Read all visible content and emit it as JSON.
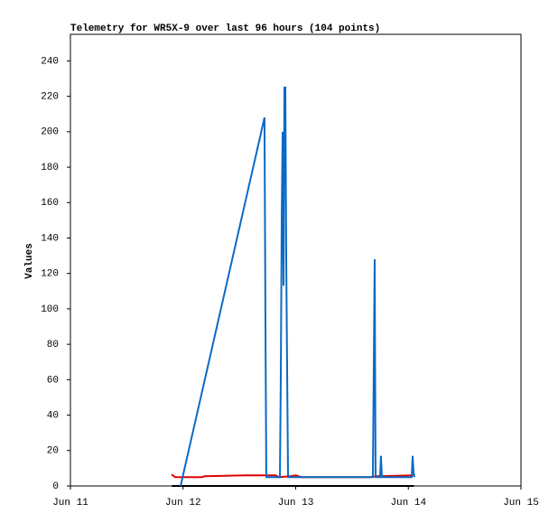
{
  "chart_data": {
    "type": "line",
    "title": "Telemetry for WR5X-9 over last 96 hours (104 points)",
    "y_label": "Values",
    "xlim": [
      11,
      15
    ],
    "xticks": [
      {
        "value": 11,
        "label": "Jun 11"
      },
      {
        "value": 12,
        "label": "Jun 12"
      },
      {
        "value": 13,
        "label": "Jun 13"
      },
      {
        "value": 14,
        "label": "Jun 14"
      },
      {
        "value": 15,
        "label": "Jun 15"
      }
    ],
    "ylim": [
      0,
      255
    ],
    "yticks": [
      0,
      20,
      40,
      60,
      80,
      100,
      120,
      140,
      160,
      180,
      200,
      220,
      240
    ],
    "grid": false,
    "series": [
      {
        "color": "#000000",
        "x": [
          11.9,
          14.05
        ],
        "values": [
          0,
          0
        ]
      },
      {
        "color": "#e00000",
        "x": [
          11.898,
          11.93,
          12.17,
          12.19,
          12.55,
          12.82,
          12.85,
          12.95,
          13.0,
          13.05,
          13.65,
          13.72,
          14.046
        ],
        "values": [
          6.5,
          5,
          5,
          5.5,
          6,
          6,
          5,
          5.5,
          6,
          5,
          5,
          5.5,
          6
        ]
      },
      {
        "color": "#0a6ac4",
        "x": [
          11.978,
          12.723,
          12.731,
          12.739,
          12.86,
          12.868,
          12.876,
          12.884,
          12.892,
          12.9,
          12.908,
          12.916,
          12.924,
          12.932,
          13.685,
          13.693,
          13.701,
          13.709,
          13.749,
          13.757,
          13.765,
          14.03,
          14.038,
          14.046,
          14.054
        ],
        "values": [
          0,
          208,
          97,
          5,
          5,
          65,
          152,
          200,
          113,
          225,
          225,
          128,
          65,
          5,
          5,
          65,
          128,
          5,
          5,
          17,
          5,
          5,
          17,
          8,
          5
        ]
      }
    ]
  }
}
